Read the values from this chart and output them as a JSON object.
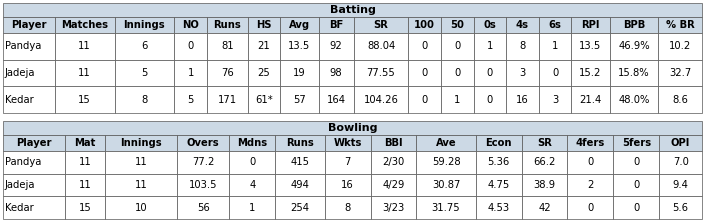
{
  "batting_title": "Batting",
  "batting_headers": [
    "Player",
    "Matches",
    "Innings",
    "NO",
    "Runs",
    "HS",
    "Avg",
    "BF",
    "SR",
    "100",
    "50",
    "0s",
    "4s",
    "6s",
    "RPI",
    "BPB",
    "% BR"
  ],
  "batting_rows": [
    [
      "Pandya",
      "11",
      "6",
      "0",
      "81",
      "21",
      "13.5",
      "92",
      "88.04",
      "0",
      "0",
      "1",
      "8",
      "1",
      "13.5",
      "46.9%",
      "10.2"
    ],
    [
      "Jadeja",
      "11",
      "5",
      "1",
      "76",
      "25",
      "19",
      "98",
      "77.55",
      "0",
      "0",
      "0",
      "3",
      "0",
      "15.2",
      "15.8%",
      "32.7"
    ],
    [
      "Kedar",
      "15",
      "8",
      "5",
      "171",
      "61*",
      "57",
      "164",
      "104.26",
      "0",
      "1",
      "0",
      "16",
      "3",
      "21.4",
      "48.0%",
      "8.6"
    ]
  ],
  "bowling_title": "Bowling",
  "bowling_headers": [
    "Player",
    "Mat",
    "Innings",
    "Overs",
    "Mdns",
    "Runs",
    "Wkts",
    "BBI",
    "Ave",
    "Econ",
    "SR",
    "4fers",
    "5fers",
    "OPI"
  ],
  "bowling_rows": [
    [
      "Pandya",
      "11",
      "11",
      "77.2",
      "0",
      "415",
      "7",
      "2/30",
      "59.28",
      "5.36",
      "66.2",
      "0",
      "0",
      "7.0"
    ],
    [
      "Jadeja",
      "11",
      "11",
      "103.5",
      "4",
      "494",
      "16",
      "4/29",
      "30.87",
      "4.75",
      "38.9",
      "2",
      "0",
      "9.4"
    ],
    [
      "Kedar",
      "15",
      "10",
      "56",
      "1",
      "254",
      "8",
      "3/23",
      "31.75",
      "4.53",
      "42",
      "0",
      "0",
      "5.6"
    ]
  ],
  "header_bg": "#ccd9e5",
  "title_bg": "#ccd9e5",
  "row_bg": "#ffffff",
  "gap_bg": "#ffffff",
  "border_color": "#555555",
  "text_color": "#000000",
  "header_fontsize": 7.2,
  "data_fontsize": 7.2,
  "title_fontsize": 8.0,
  "bat_col_ratios": [
    38,
    44,
    44,
    24,
    30,
    24,
    28,
    26,
    40,
    24,
    24,
    24,
    24,
    24,
    28,
    36,
    32
  ],
  "bowl_col_ratios": [
    38,
    24,
    44,
    32,
    28,
    30,
    28,
    28,
    36,
    28,
    28,
    28,
    28,
    26
  ]
}
